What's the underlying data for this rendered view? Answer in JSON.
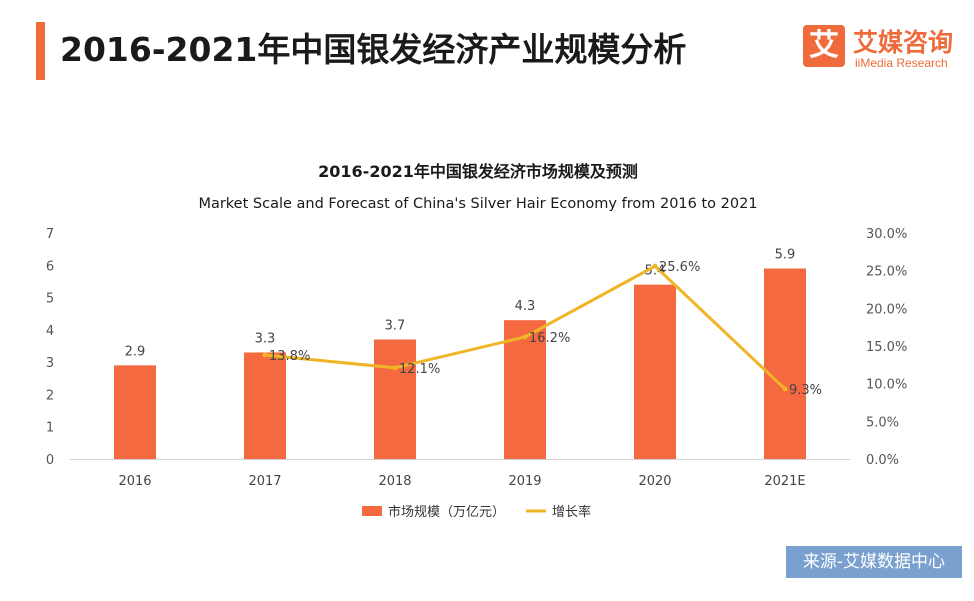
{
  "header": {
    "title": "2016-2021年中国银发经济产业规模分析",
    "logo_cn": "艾媒咨询",
    "logo_en": "iiMedia Research",
    "logo_mark": "艾"
  },
  "source": "来源-艾媒数据中心",
  "colors": {
    "bar": "#f4693f",
    "line": "#f0b527",
    "accent": "#ef6b3c",
    "badge": "#7aa0cf"
  },
  "chart_data": {
    "type": "bar",
    "title": "2016-2021年中国银发经济市场规模及预测",
    "subtitle": "Market Scale and Forecast of China's Silver Hair Economy from 2016 to 2021",
    "categories": [
      "2016",
      "2017",
      "2018",
      "2019",
      "2020",
      "2021E"
    ],
    "series": [
      {
        "name": "市场规模（万亿元）",
        "type": "bar",
        "axis": "left",
        "values": [
          2.9,
          3.3,
          3.7,
          4.3,
          5.4,
          5.9
        ],
        "labels": [
          "2.9",
          "3.3",
          "3.7",
          "4.3",
          "5.4",
          "5.9"
        ]
      },
      {
        "name": "增长率",
        "type": "line",
        "axis": "right",
        "values": [
          null,
          13.8,
          12.1,
          16.2,
          25.6,
          9.3
        ],
        "labels": [
          "",
          "13.8%",
          "12.1%",
          "16.2%",
          "25.6%",
          "9.3%"
        ]
      }
    ],
    "y_left": {
      "min": 0,
      "max": 7,
      "ticks": [
        "0",
        "1",
        "2",
        "3",
        "4",
        "5",
        "6",
        "7"
      ]
    },
    "y_right": {
      "min": 0,
      "max": 30,
      "ticks": [
        "0.0%",
        "5.0%",
        "10.0%",
        "15.0%",
        "20.0%",
        "25.0%",
        "30.0%"
      ]
    },
    "legend": "bottom",
    "grid": false
  }
}
